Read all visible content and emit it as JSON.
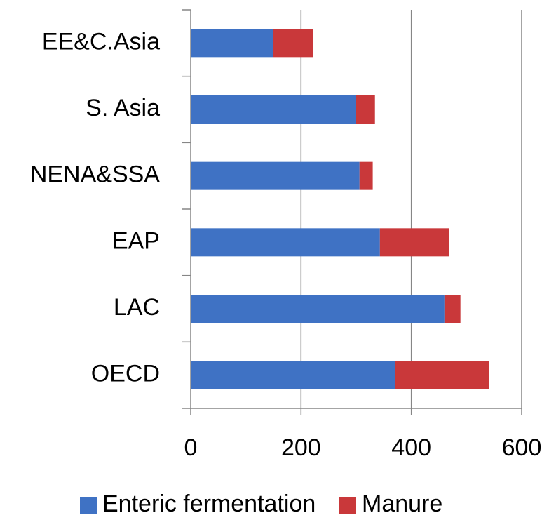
{
  "chart_data": {
    "type": "bar",
    "orientation": "horizontal",
    "stacked": true,
    "categories": [
      "EE&C.Asia",
      "S. Asia",
      "NENA&SSA",
      "EAP",
      "LAC",
      "OECD"
    ],
    "series": [
      {
        "name": "Enteric fermentation",
        "color": "#3f72c4",
        "values": [
          150,
          300,
          306,
          343,
          460,
          371
        ]
      },
      {
        "name": "Manure",
        "color": "#c9383a",
        "values": [
          72,
          34,
          24,
          126,
          29,
          170
        ]
      }
    ],
    "xlim": [
      0,
      600
    ],
    "xticks": [
      0,
      200,
      400,
      600
    ],
    "grid": true,
    "legend": "bottom"
  }
}
